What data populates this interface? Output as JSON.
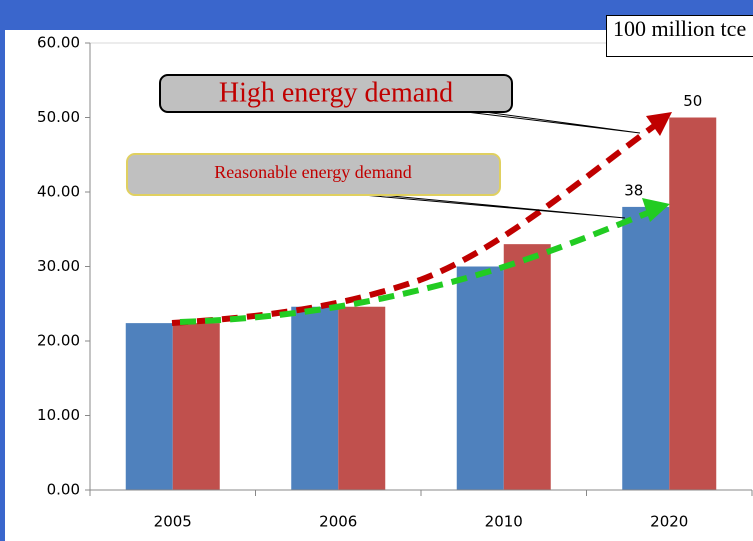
{
  "chart_data": {
    "type": "bar",
    "categories": [
      "2005",
      "2006",
      "2010",
      "2020"
    ],
    "series": [
      {
        "color": "#4f81bd",
        "values": [
          22.4,
          24.6,
          30,
          38
        ],
        "show_labels": [
          false,
          false,
          false,
          true
        ]
      },
      {
        "color": "#c0504d",
        "values": [
          22.4,
          24.6,
          33,
          50
        ],
        "show_labels": [
          false,
          false,
          false,
          true
        ]
      }
    ],
    "ylim": [
      0,
      60
    ],
    "yticks": [
      {
        "value": 0,
        "label": "0.00"
      },
      {
        "value": 10,
        "label": "10.00"
      },
      {
        "value": 20,
        "label": "20.00"
      },
      {
        "value": 30,
        "label": "30.00"
      },
      {
        "value": 40,
        "label": "40.00"
      },
      {
        "value": 50,
        "label": "50.00"
      },
      {
        "value": 60,
        "label": "60.00"
      }
    ],
    "grid": false,
    "unit_label": "100 million tce",
    "annotations": [
      "High energy demand",
      "Reasonable energy demand"
    ]
  }
}
